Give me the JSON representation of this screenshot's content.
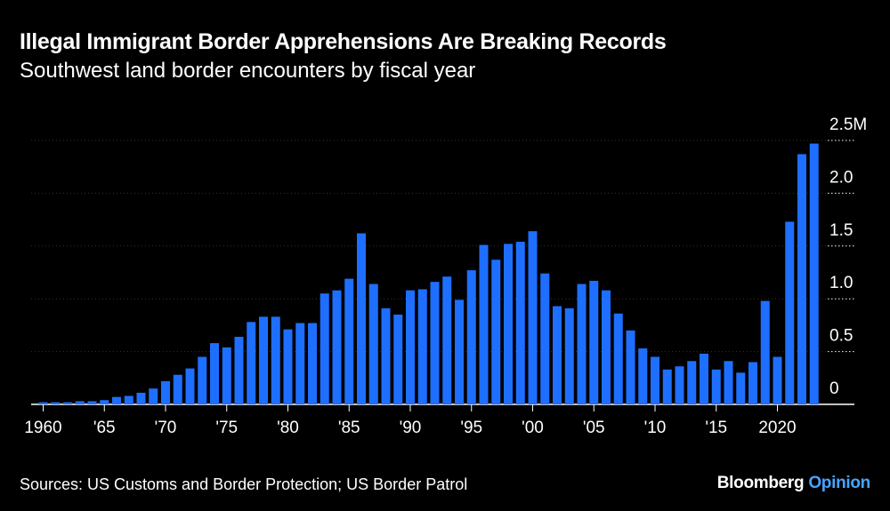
{
  "chart_data": {
    "type": "bar",
    "title": "Illegal Immigrant Border Apprehensions Are Breaking Records",
    "subtitle": "Southwest land border encounters by fiscal year",
    "xlabel": "",
    "ylabel": "",
    "ylim": [
      0,
      2.5
    ],
    "grid": true,
    "x": [
      1960,
      1961,
      1962,
      1963,
      1964,
      1965,
      1966,
      1967,
      1968,
      1969,
      1970,
      1971,
      1972,
      1973,
      1974,
      1975,
      1976,
      1977,
      1978,
      1979,
      1980,
      1981,
      1982,
      1983,
      1984,
      1985,
      1986,
      1987,
      1988,
      1989,
      1990,
      1991,
      1992,
      1993,
      1994,
      1995,
      1996,
      1997,
      1998,
      1999,
      2000,
      2001,
      2002,
      2003,
      2004,
      2005,
      2006,
      2007,
      2008,
      2009,
      2010,
      2011,
      2012,
      2013,
      2014,
      2015,
      2016,
      2017,
      2018,
      2019,
      2020,
      2021,
      2022,
      2023
    ],
    "values": [
      0.02,
      0.02,
      0.02,
      0.03,
      0.03,
      0.04,
      0.07,
      0.08,
      0.11,
      0.15,
      0.22,
      0.28,
      0.34,
      0.45,
      0.58,
      0.54,
      0.64,
      0.78,
      0.83,
      0.83,
      0.71,
      0.77,
      0.77,
      1.05,
      1.08,
      1.19,
      1.62,
      1.14,
      0.91,
      0.85,
      1.08,
      1.09,
      1.16,
      1.21,
      0.99,
      1.27,
      1.51,
      1.37,
      1.52,
      1.54,
      1.64,
      1.24,
      0.93,
      0.91,
      1.14,
      1.17,
      1.08,
      0.86,
      0.7,
      0.53,
      0.45,
      0.33,
      0.36,
      0.41,
      0.48,
      0.33,
      0.41,
      0.3,
      0.4,
      0.98,
      0.45,
      1.73,
      2.37,
      2.47
    ],
    "x_tick_labels": [
      {
        "year": 1960,
        "label": "1960"
      },
      {
        "year": 1965,
        "label": "'65"
      },
      {
        "year": 1970,
        "label": "'70"
      },
      {
        "year": 1975,
        "label": "'75"
      },
      {
        "year": 1980,
        "label": "'80"
      },
      {
        "year": 1985,
        "label": "'85"
      },
      {
        "year": 1990,
        "label": "'90"
      },
      {
        "year": 1995,
        "label": "'95"
      },
      {
        "year": 2000,
        "label": "'00"
      },
      {
        "year": 2005,
        "label": "'05"
      },
      {
        "year": 2010,
        "label": "'10"
      },
      {
        "year": 2015,
        "label": "'15"
      },
      {
        "year": 2020,
        "label": "2020"
      }
    ],
    "y_ticks": [
      {
        "value": 0,
        "label": "0"
      },
      {
        "value": 0.5,
        "label": "0.5"
      },
      {
        "value": 1.0,
        "label": "1.0"
      },
      {
        "value": 1.5,
        "label": "1.5"
      },
      {
        "value": 2.0,
        "label": "2.0"
      },
      {
        "value": 2.5,
        "label": "2.5M"
      }
    ],
    "bar_color": "#1e6fff",
    "grid_color": "#ffffff"
  },
  "footer": {
    "source": "Sources: US Customs and Border Protection; US Border Patrol",
    "brand_main": "Bloomberg",
    "brand_accent": "Opinion"
  }
}
